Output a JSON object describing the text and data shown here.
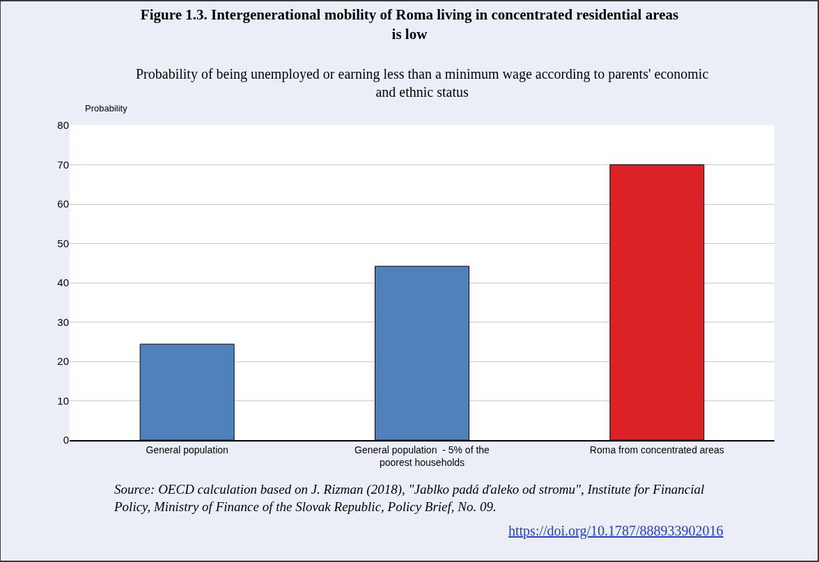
{
  "chart_data": {
    "type": "bar",
    "title": "Figure 1.3. Intergenerational mobility of Roma living in concentrated residential areas is low",
    "subtitle": "Probability of being unemployed or earning less than a minimum wage according to parents' economic and ethnic status",
    "ylabel": "Probability",
    "categories": [
      "General population",
      "General population  - 5% of the poorest households",
      "Roma from concentrated areas"
    ],
    "values": [
      24.4,
      44.2,
      70
    ],
    "colors": [
      "#4f81bd",
      "#4f81bd",
      "#dc2127"
    ],
    "ylim": [
      0,
      80
    ],
    "yticks": [
      0,
      10,
      20,
      30,
      40,
      50,
      60,
      70,
      80
    ],
    "grid": "y",
    "annotations": [
      "Source: OECD calculation based on J. Rizman (2018), \"Jablko padá ďaleko od stromu\", Institute for Financial Policy, Ministry of Finance of the Slovak Republic, Policy Brief, No. 09.",
      "https://doi.org/10.1787/888933902016"
    ]
  }
}
